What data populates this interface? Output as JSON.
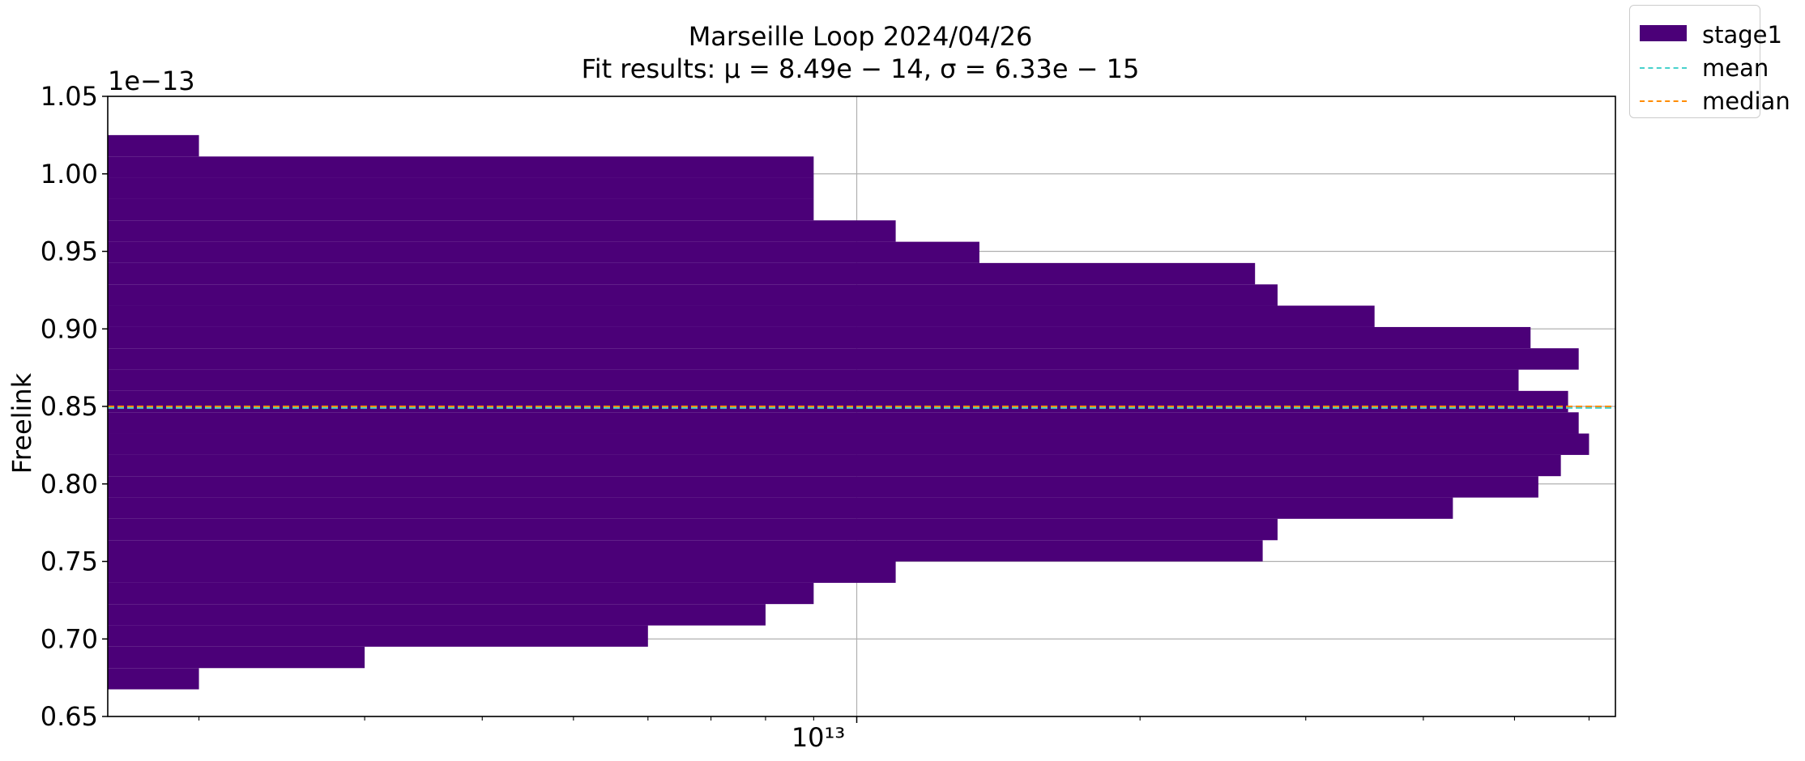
{
  "chart_data": {
    "type": "bar",
    "orientation": "horizontal",
    "title": "Marseille Loop 2024/04/26",
    "subtitle": "Fit results: μ = 8.49e − 14,  σ = 6.33e − 15",
    "ylabel": "Freelink",
    "xlabel": "",
    "y_offset_label": "1e−13",
    "y_scale_factor": 1e-13,
    "x_scale": "log",
    "xlim": [
      1600000000000.0,
      64000000000000.0
    ],
    "ylim": [
      0.65,
      1.05
    ],
    "y_ticks": [
      "0.65",
      "0.70",
      "0.75",
      "0.80",
      "0.85",
      "0.90",
      "0.95",
      "1.00",
      "1.05"
    ],
    "x_tick_major_label": "10¹³",
    "grid": true,
    "legend_position": "outside top-right",
    "series": [
      {
        "name": "stage1",
        "color": "#4b0078",
        "bins": [
          {
            "y0": 0.6675,
            "y1": 0.6812,
            "x": 2000000000000.0
          },
          {
            "y0": 0.6812,
            "y1": 0.695,
            "x": 3000000000000.0
          },
          {
            "y0": 0.695,
            "y1": 0.7087,
            "x": 6000000000000.0
          },
          {
            "y0": 0.7087,
            "y1": 0.7225,
            "x": 8000000000000.0
          },
          {
            "y0": 0.7225,
            "y1": 0.7362,
            "x": 9000000000000.0
          },
          {
            "y0": 0.7362,
            "y1": 0.75,
            "x": 11000000000000.0
          },
          {
            "y0": 0.75,
            "y1": 0.7637,
            "x": 27000000000000.0
          },
          {
            "y0": 0.7637,
            "y1": 0.7775,
            "x": 28000000000000.0
          },
          {
            "y0": 0.7775,
            "y1": 0.7912,
            "x": 43000000000000.0
          },
          {
            "y0": 0.7912,
            "y1": 0.805,
            "x": 53000000000000.0
          },
          {
            "y0": 0.805,
            "y1": 0.8187,
            "x": 56000000000000.0
          },
          {
            "y0": 0.8187,
            "y1": 0.8325,
            "x": 60000000000000.0
          },
          {
            "y0": 0.8325,
            "y1": 0.8462,
            "x": 58500000000000.0
          },
          {
            "y0": 0.8462,
            "y1": 0.86,
            "x": 57000000000000.0
          },
          {
            "y0": 0.86,
            "y1": 0.8737,
            "x": 50500000000000.0
          },
          {
            "y0": 0.8737,
            "y1": 0.8875,
            "x": 58500000000000.0
          },
          {
            "y0": 0.8875,
            "y1": 0.9012,
            "x": 52000000000000.0
          },
          {
            "y0": 0.9012,
            "y1": 0.915,
            "x": 35500000000000.0
          },
          {
            "y0": 0.915,
            "y1": 0.9287,
            "x": 28000000000000.0
          },
          {
            "y0": 0.9287,
            "y1": 0.9425,
            "x": 26500000000000.0
          },
          {
            "y0": 0.9425,
            "y1": 0.9562,
            "x": 13500000000000.0
          },
          {
            "y0": 0.9562,
            "y1": 0.97,
            "x": 11000000000000.0
          },
          {
            "y0": 0.97,
            "y1": 0.9837,
            "x": 9000000000000.0
          },
          {
            "y0": 0.9837,
            "y1": 0.9975,
            "x": 9000000000000.0
          },
          {
            "y0": 0.9975,
            "y1": 1.0112,
            "x": 9000000000000.0
          },
          {
            "y0": 1.0112,
            "y1": 1.025,
            "x": 2000000000000.0
          }
        ]
      }
    ],
    "mean": {
      "name": "mean",
      "value": 0.849,
      "color": "#48d1cc"
    },
    "median": {
      "name": "median",
      "value": 0.85,
      "color": "#ff8c00"
    }
  }
}
